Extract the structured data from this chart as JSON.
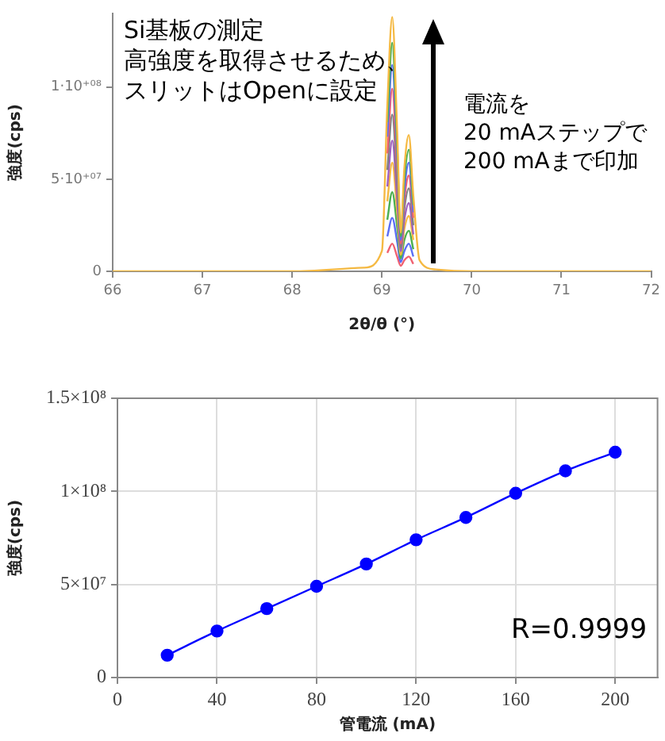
{
  "chart_data": [
    {
      "type": "line",
      "xlabel": "2θ/θ (°)",
      "ylabel": "強度(cps)",
      "xlim": [
        66,
        72
      ],
      "ylim": [
        0,
        140000000.0
      ],
      "xticks": [
        66,
        67,
        68,
        69,
        70,
        71,
        72
      ],
      "yticks": [
        0,
        {
          "value": 50000000.0,
          "label": "5·10⁺⁰⁷"
        },
        {
          "value": 100000000.0,
          "label": "1·10⁺⁰⁸"
        }
      ],
      "grid": false,
      "legend": false,
      "marker": "none",
      "line_style": "solid",
      "x": [
        69.06,
        69.115,
        69.17,
        69.21,
        69.25,
        69.3,
        69.35
      ],
      "series": [
        {
          "color": "#f5b942",
          "x": [
            66,
            68.0,
            68.8,
            69.0,
            69.06,
            69.115,
            69.17,
            69.21,
            69.25,
            69.3,
            69.35,
            69.42,
            69.6,
            70.0,
            72
          ],
          "values": [
            0,
            0,
            2000000.0,
            11000000.0,
            90000000.0,
            138000000.0,
            76000000.0,
            21000000.0,
            56000000.0,
            74000000.0,
            41000000.0,
            6000000.0,
            1000000.0,
            0,
            0
          ]
        },
        {
          "color": "#4caf50",
          "values": [
            81000000.0,
            124000000.0,
            68000000.0,
            19000000.0,
            50000000.0,
            66000000.0,
            36000000.0
          ]
        },
        {
          "color": "#5b6ef5",
          "values": [
            73000000.0,
            112000000.0,
            62000000.0,
            17000000.0,
            44000000.0,
            59000000.0,
            32000000.0
          ]
        },
        {
          "color": "#f06070",
          "values": [
            64000000.0,
            99000000.0,
            54000000.0,
            15000000.0,
            39000000.0,
            52000000.0,
            29000000.0
          ]
        },
        {
          "color": "#808080",
          "values": [
            55000000.0,
            85000000.0,
            47000000.0,
            13000000.0,
            34000000.0,
            45000000.0,
            25000000.0
          ]
        },
        {
          "color": "#a060c0",
          "values": [
            46000000.0,
            71000000.0,
            39000000.0,
            11000000.0,
            28000000.0,
            37000000.0,
            20000000.0
          ]
        },
        {
          "color": "#f5b942",
          "values": [
            38000000.0,
            59000000.0,
            32000000.0,
            9000000.0,
            23000000.0,
            30000000.0,
            17000000.0
          ]
        },
        {
          "color": "#4caf50",
          "values": [
            28000000.0,
            43000000.0,
            24000000.0,
            7000000.0,
            17000000.0,
            22000000.0,
            12000000.0
          ]
        },
        {
          "color": "#5b6ef5",
          "values": [
            19000000.0,
            29000000.0,
            16000000.0,
            5000000.0,
            11000000.0,
            15000000.0,
            8000000.0
          ]
        },
        {
          "color": "#f06070",
          "values": [
            10000000.0,
            15000000.0,
            8000000.0,
            3000000.0,
            6000000.0,
            8000000.0,
            4000000.0
          ]
        }
      ],
      "annotations": [
        "Si基板の測定",
        "高強度を取得させるため、",
        "スリットはOpenに設定",
        "電流を",
        "20 mAステップで",
        "200 mAまで印加"
      ]
    },
    {
      "type": "line",
      "xlabel": "管電流 (mA)",
      "ylabel": "強度(cps)",
      "xlim": [
        0,
        217
      ],
      "ylim": [
        0,
        150000000.0
      ],
      "xticks": [
        0,
        40,
        80,
        120,
        160,
        200
      ],
      "yticks": [
        0,
        {
          "value": 50000000.0,
          "label": "5×10⁷"
        },
        {
          "value": 100000000.0,
          "label": "1×10⁸"
        },
        {
          "value": 150000000.0,
          "label": "1.5×10⁸"
        }
      ],
      "grid": true,
      "legend": false,
      "marker": "circle",
      "line_style": "solid",
      "x": [
        20,
        40,
        60,
        80,
        100,
        120,
        140,
        160,
        180,
        200
      ],
      "series": [
        {
          "color": "#0000ff",
          "values": [
            12000000.0,
            25000000.0,
            37000000.0,
            49000000.0,
            61000000.0,
            74000000.0,
            86000000.0,
            99000000.0,
            111000000.0,
            121000000.0
          ]
        }
      ],
      "annotations": [
        "R=0.9999"
      ]
    }
  ]
}
